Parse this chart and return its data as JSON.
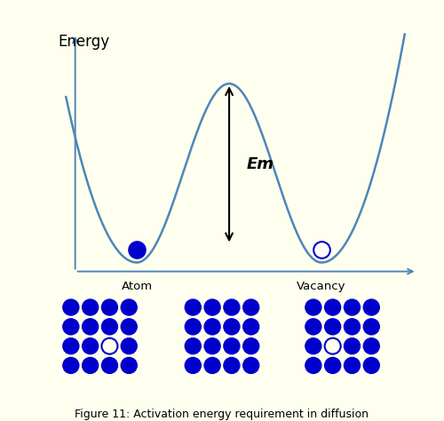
{
  "ylabel": "Energy",
  "bg_color": "#fffff0",
  "curve_color": "#4d86b8",
  "curve_linewidth": 1.8,
  "atom_fill_color": "#0000CC",
  "vacancy_edge_color": "#0000CC",
  "dot_color": "#0000CC",
  "em_label": "Em",
  "atom_label": "Atom",
  "vacancy_label": "Vacancy",
  "caption": "Figure 11: Activation energy requirement in diffusion",
  "figwidth": 5.0,
  "figheight": 4.74,
  "dpi": 100
}
